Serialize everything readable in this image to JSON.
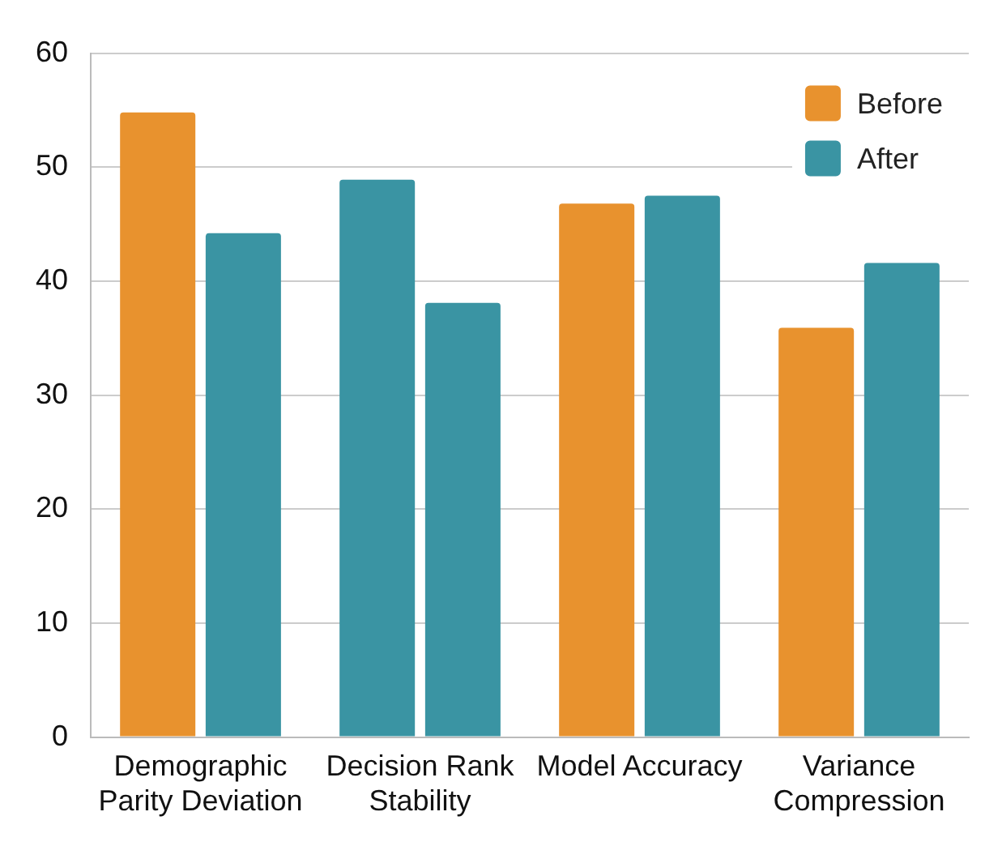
{
  "chart_data": {
    "type": "bar",
    "categories": [
      "Demographic Parity Deviation",
      "Decision Rank Stability",
      "Model Accuracy",
      "Variance Compression"
    ],
    "series": [
      {
        "name": "Before",
        "color": "#e8922e",
        "colors": [
          "#e8922e",
          "#3a94a3",
          "#e8922e",
          "#e8922e"
        ],
        "values": [
          54.8,
          48.9,
          46.8,
          35.9
        ]
      },
      {
        "name": "After",
        "color": "#3a94a3",
        "values": [
          44.2,
          38.1,
          47.5,
          41.6
        ]
      }
    ],
    "ylim": [
      0,
      60
    ],
    "yticks": [
      0,
      10,
      20,
      30,
      40,
      50,
      60
    ],
    "grid": "y",
    "legend": "top right"
  }
}
